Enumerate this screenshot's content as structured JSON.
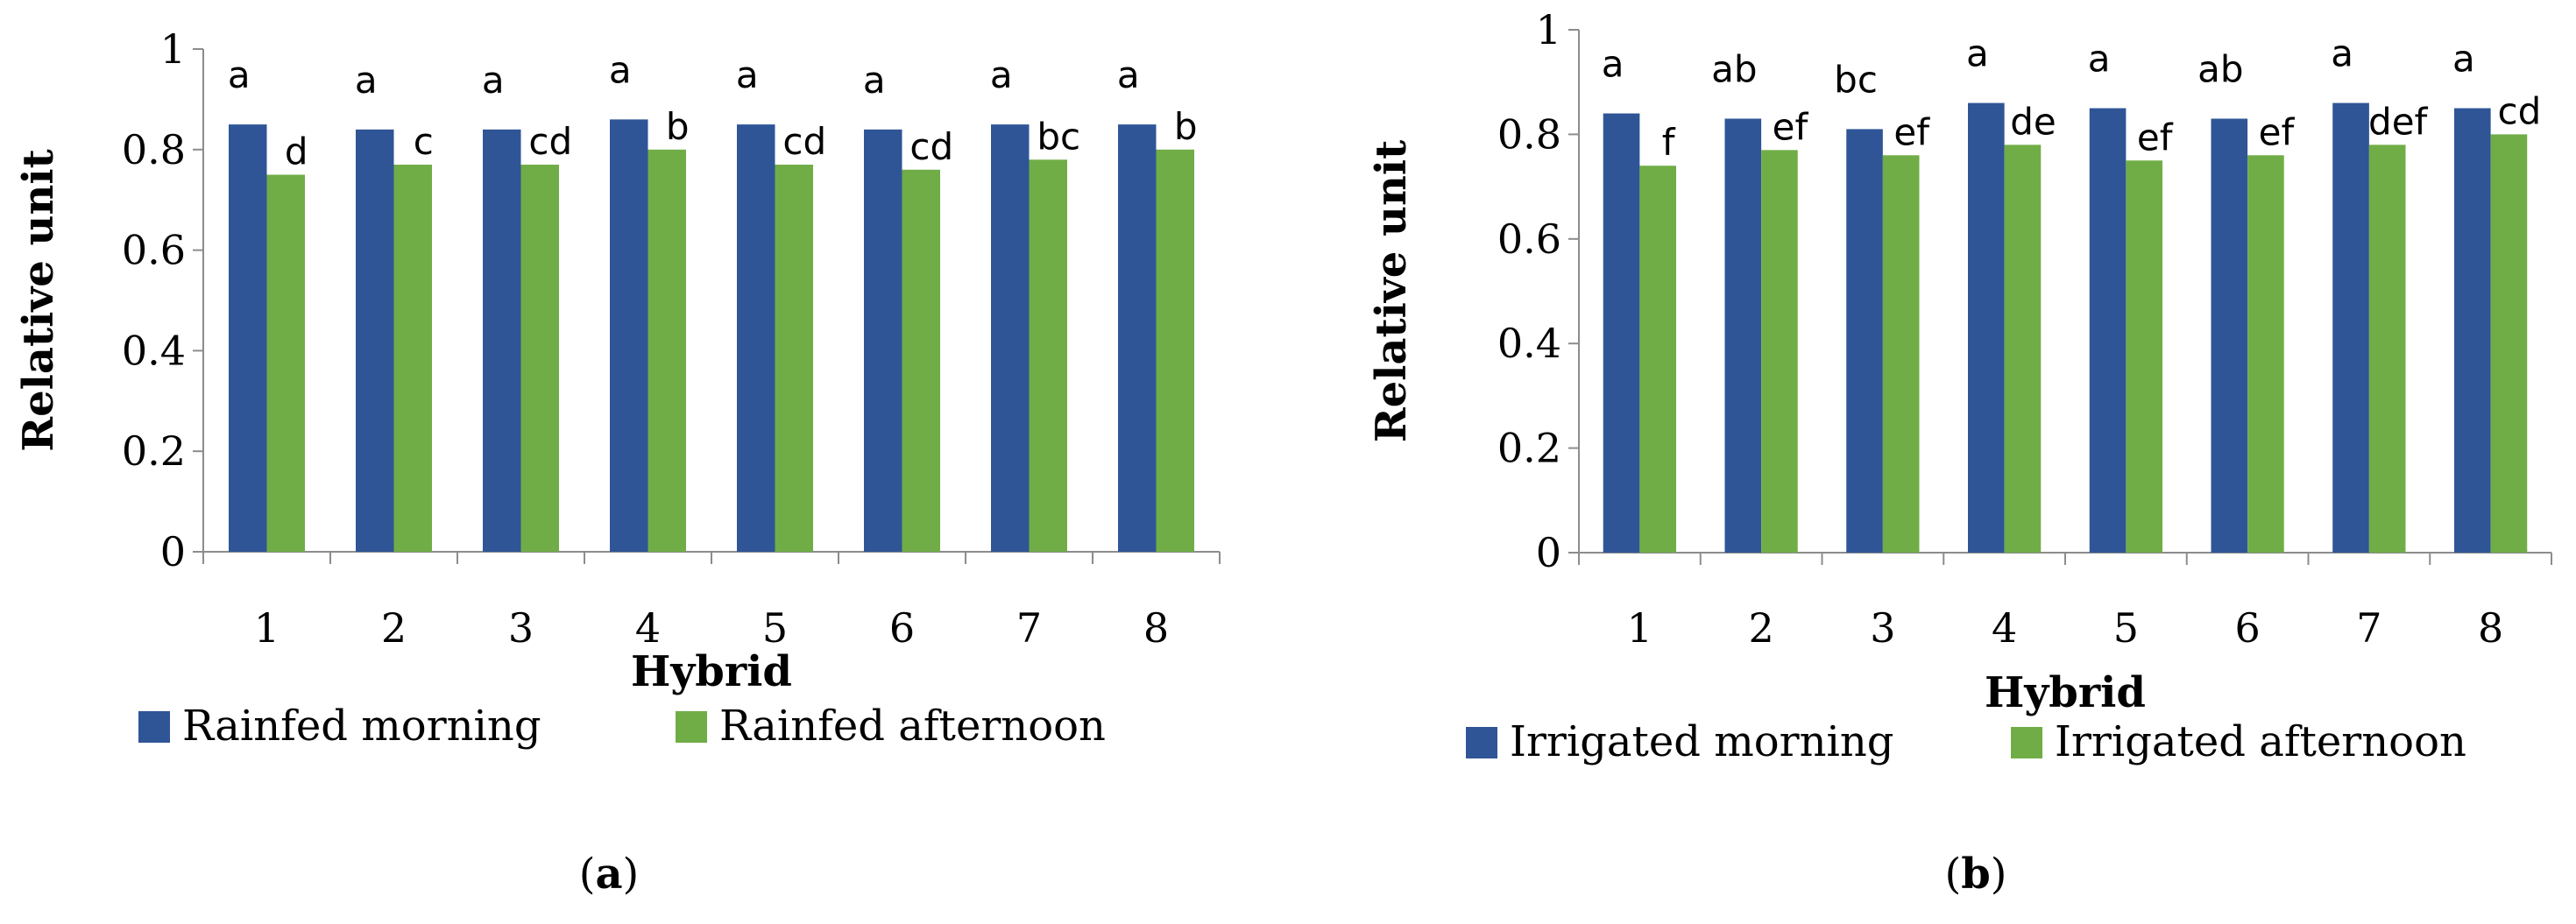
{
  "chart_data": [
    {
      "type": "bar",
      "panel_label": "(a)",
      "panel_letter": "a",
      "xlabel": "Hybrid",
      "ylabel": "Relative unit",
      "ylim": [
        0,
        1
      ],
      "yticks": [
        "0",
        "0.2",
        "0.4",
        "0.6",
        "0.8",
        "1"
      ],
      "categories": [
        "1",
        "2",
        "3",
        "4",
        "5",
        "6",
        "7",
        "8"
      ],
      "series": [
        {
          "name": "Rainfed morning",
          "color": "#2F5597",
          "values": [
            0.85,
            0.84,
            0.84,
            0.86,
            0.85,
            0.84,
            0.85,
            0.85
          ],
          "letters": [
            "a",
            "a",
            "a",
            "a",
            "a",
            "a",
            "a",
            "a"
          ]
        },
        {
          "name": "Rainfed afternoon",
          "color": "#70AD47",
          "values": [
            0.75,
            0.77,
            0.77,
            0.8,
            0.77,
            0.76,
            0.78,
            0.8
          ],
          "letters": [
            "d",
            "c",
            "cd",
            "b",
            "cd",
            "cd",
            "bc",
            "b"
          ]
        }
      ],
      "legend_position": "bottom"
    },
    {
      "type": "bar",
      "panel_label": "(b)",
      "panel_letter": "b",
      "xlabel": "Hybrid",
      "ylabel": "Relative unit",
      "ylim": [
        0,
        1
      ],
      "yticks": [
        "0",
        "0.2",
        "0.4",
        "0.6",
        "0.8",
        "1"
      ],
      "categories": [
        "1",
        "2",
        "3",
        "4",
        "5",
        "6",
        "7",
        "8"
      ],
      "series": [
        {
          "name": "Irrigated morning",
          "color": "#2F5597",
          "values": [
            0.84,
            0.83,
            0.81,
            0.86,
            0.85,
            0.83,
            0.86,
            0.85
          ],
          "letters": [
            "a",
            "ab",
            "bc",
            "a",
            "a",
            "ab",
            "a",
            "a"
          ]
        },
        {
          "name": "Irrigated afternoon",
          "color": "#70AD47",
          "values": [
            0.74,
            0.77,
            0.76,
            0.78,
            0.75,
            0.76,
            0.78,
            0.8
          ],
          "letters": [
            "f",
            "ef",
            "ef",
            "de",
            "ef",
            "ef",
            "def",
            "cd"
          ]
        }
      ],
      "legend_position": "bottom"
    }
  ]
}
